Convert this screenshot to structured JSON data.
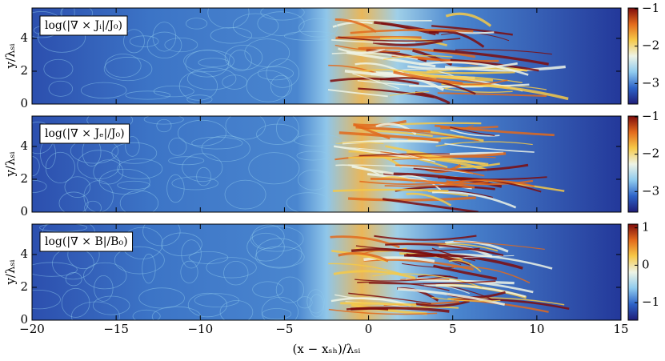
{
  "chart_data": [
    {
      "type": "heatmap",
      "annotation": "log(|∇ × Jᵢ|/J₀)",
      "ylabel": "y/λₛᵢ",
      "xlim": [
        -20,
        15
      ],
      "ylim": [
        0,
        5.85
      ],
      "yticks": [
        0,
        2,
        4
      ],
      "clim": [
        -3.55,
        -0.98
      ],
      "cticks": [
        {
          "value": -3,
          "label": "−3"
        },
        {
          "value": -2,
          "label": "−2"
        },
        {
          "value": -1,
          "label": "−1"
        }
      ],
      "colormap": [
        "#1f1d78",
        "#2d63c8",
        "#8fcbee",
        "#eef4e6",
        "#f6c948",
        "#e26a1c",
        "#7e0c0c"
      ]
    },
    {
      "type": "heatmap",
      "annotation": "log(|∇ × Jₑ|/J₀)",
      "ylabel": "y/λₛᵢ",
      "xlim": [
        -20,
        15
      ],
      "ylim": [
        0,
        5.85
      ],
      "yticks": [
        0,
        2,
        4
      ],
      "clim": [
        -3.55,
        -0.98
      ],
      "cticks": [
        {
          "value": -3,
          "label": "−3"
        },
        {
          "value": -2,
          "label": "−2"
        },
        {
          "value": -1,
          "label": "−1"
        }
      ],
      "colormap": [
        "#1f1d78",
        "#2d63c8",
        "#8fcbee",
        "#eef4e6",
        "#f6c948",
        "#e26a1c",
        "#7e0c0c"
      ]
    },
    {
      "type": "heatmap",
      "annotation": "log(|∇ × B|/B₀)",
      "ylabel": "y/λₛᵢ",
      "xlabel": "(x − xₛₕ)/λₛᵢ",
      "xlim": [
        -20,
        15
      ],
      "ylim": [
        0,
        5.85
      ],
      "yticks": [
        0,
        2,
        4
      ],
      "xticks": [
        {
          "value": -20,
          "label": "−20"
        },
        {
          "value": -15,
          "label": "−15"
        },
        {
          "value": -10,
          "label": "−10"
        },
        {
          "value": -5,
          "label": "−5"
        },
        0,
        5,
        10,
        15
      ],
      "clim": [
        -1.47,
        1.1
      ],
      "cticks": [
        {
          "value": -1,
          "label": "−1"
        },
        0,
        1
      ],
      "colormap": [
        "#1f1d78",
        "#2d63c8",
        "#8fcbee",
        "#eef4e6",
        "#f6c948",
        "#e26a1c",
        "#7e0c0c"
      ]
    }
  ]
}
